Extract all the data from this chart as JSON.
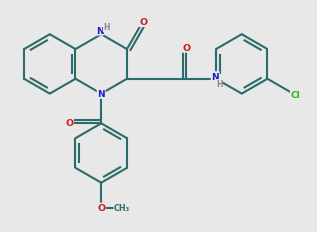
{
  "bg_color": "#e8e8e8",
  "bond_color": "#2d6b6b",
  "N_color": "#1a1acc",
  "O_color": "#cc1a1a",
  "Cl_color": "#22bb22",
  "H_color": "#888888",
  "lw": 1.5
}
